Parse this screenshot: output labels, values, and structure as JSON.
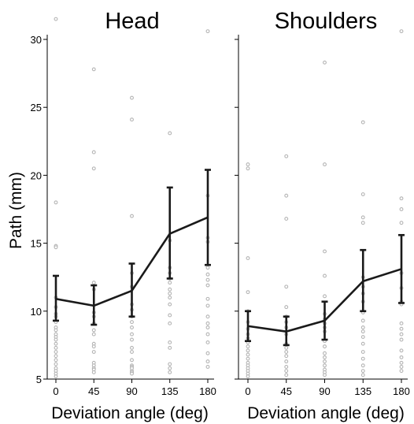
{
  "colors": {
    "mean": "#1a1a1a",
    "raw": "#b4b4b4",
    "axis": "#000000"
  },
  "chart_data": [
    {
      "type": "line",
      "title": "Head",
      "xlabel": "Deviation angle (deg)",
      "ylabel": "Path (mm)",
      "x": [
        0,
        45,
        90,
        135,
        180
      ],
      "x_tick_labels": [
        "0",
        "45",
        "90",
        "135",
        "180"
      ],
      "ylim": [
        5,
        30
      ],
      "y_ticks": [
        5,
        10,
        15,
        20,
        25,
        30
      ],
      "y_tick_labels": [
        "5",
        "10",
        "15",
        "20",
        "25",
        "30"
      ],
      "grid": false,
      "series": [
        {
          "role": "mean",
          "values": [
            10.9,
            10.4,
            11.5,
            15.7,
            16.9
          ],
          "error_low": [
            9.3,
            9.0,
            9.6,
            12.4,
            13.4
          ],
          "error_high": [
            12.6,
            11.9,
            13.5,
            19.1,
            20.4
          ]
        }
      ],
      "raw_points": [
        {
          "x": 0,
          "values": [
            31.5,
            18.0,
            14.8,
            14.7,
            11.0,
            10.3,
            9.8,
            9.6,
            9.2,
            8.8,
            8.6,
            8.3,
            8.1,
            7.9,
            7.6,
            7.3,
            7.0,
            6.7,
            6.4,
            6.1,
            5.8,
            5.6,
            5.4,
            5.2
          ]
        },
        {
          "x": 45,
          "values": [
            27.8,
            21.7,
            20.5,
            12.1,
            11.6,
            9.9,
            9.6,
            9.1,
            8.6,
            8.3,
            7.6,
            7.4,
            7.0,
            6.2,
            6.0,
            5.8,
            5.7,
            5.5
          ]
        },
        {
          "x": 90,
          "values": [
            25.7,
            24.1,
            17.0,
            12.8,
            11.8,
            10.5,
            10.1,
            9.6,
            9.2,
            8.8,
            8.3,
            7.9,
            7.3,
            7.0,
            6.4,
            6.0,
            5.9,
            5.8,
            5.6,
            5.5,
            5.4
          ]
        },
        {
          "x": 135,
          "values": [
            23.1,
            15.2,
            13.2,
            12.8,
            12.4,
            12.1,
            11.6,
            11.3,
            11.0,
            10.5,
            9.7,
            9.1,
            7.7,
            7.3,
            6.1,
            5.8,
            5.5
          ]
        },
        {
          "x": 180,
          "values": [
            30.6,
            18.5,
            15.4,
            15.1,
            13.2,
            12.7,
            12.3,
            11.9,
            10.9,
            10.4,
            9.6,
            9.1,
            8.8,
            8.3,
            7.7,
            6.9,
            6.3,
            5.9
          ]
        }
      ]
    },
    {
      "type": "line",
      "title": "Shoulders",
      "xlabel": "Deviation angle (deg)",
      "ylabel": "",
      "x": [
        0,
        45,
        90,
        135,
        180
      ],
      "x_tick_labels": [
        "0",
        "45",
        "90",
        "135",
        "180"
      ],
      "ylim": [
        5,
        30
      ],
      "y_ticks": [
        5,
        10,
        15,
        20,
        25,
        30
      ],
      "grid": false,
      "series": [
        {
          "role": "mean",
          "values": [
            8.9,
            8.5,
            9.3,
            12.2,
            13.1
          ],
          "error_low": [
            7.8,
            7.5,
            7.9,
            10.0,
            10.6
          ],
          "error_high": [
            10.0,
            9.6,
            10.7,
            14.5,
            15.6
          ]
        }
      ],
      "raw_points": [
        {
          "x": 0,
          "values": [
            20.8,
            20.5,
            13.9,
            11.4,
            10.0,
            9.2,
            8.7,
            8.3,
            8.0,
            7.7,
            7.4,
            7.1,
            6.8,
            6.5,
            6.2,
            6.0,
            5.8,
            5.6,
            5.4,
            5.2
          ]
        },
        {
          "x": 45,
          "values": [
            21.4,
            18.5,
            16.8,
            11.8,
            10.3,
            9.6,
            9.2,
            8.8,
            8.3,
            7.6,
            7.3,
            7.0,
            6.7,
            6.3,
            5.9,
            5.6,
            5.3
          ]
        },
        {
          "x": 90,
          "values": [
            28.3,
            20.8,
            14.4,
            12.6,
            11.1,
            9.8,
            9.4,
            9.1,
            8.8,
            8.5,
            7.8,
            7.4,
            6.9,
            6.6,
            6.3,
            6.0,
            5.7,
            5.5,
            5.3
          ]
        },
        {
          "x": 135,
          "values": [
            23.9,
            18.6,
            16.9,
            16.5,
            12.5,
            11.8,
            11.3,
            10.7,
            9.9,
            9.3,
            8.8,
            8.5,
            8.1,
            7.6,
            7.0,
            6.5,
            6.0,
            5.6,
            5.3
          ]
        },
        {
          "x": 180,
          "values": [
            30.6,
            18.3,
            17.5,
            16.5,
            12.8,
            11.7,
            10.7,
            10.5,
            9.1,
            8.7,
            8.3,
            7.9,
            7.1,
            6.6,
            6.2,
            5.9,
            5.6
          ]
        }
      ]
    }
  ]
}
